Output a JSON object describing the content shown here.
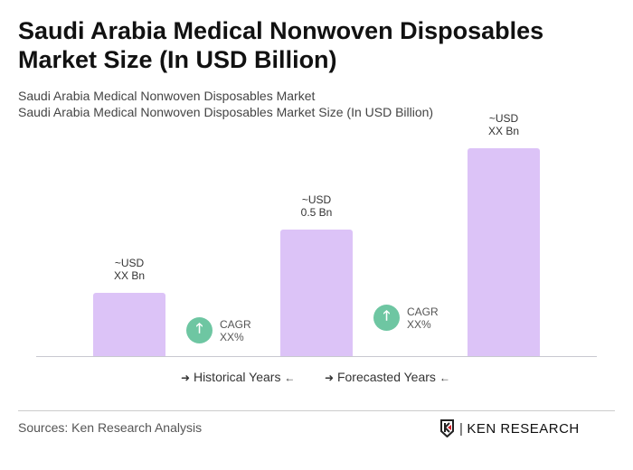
{
  "title": "Saudi Arabia Medical Nonwoven Disposables Market Size (In USD Billion)",
  "subtitle1": "Saudi Arabia Medical Nonwoven Disposables Market",
  "subtitle2": "Saudi Arabia Medical Nonwoven Disposables Market Size (In USD Billion)",
  "chart_data": {
    "type": "bar",
    "categories": [
      "",
      "",
      ""
    ],
    "values": [
      0.25,
      0.5,
      0.82
    ],
    "data_labels": [
      [
        "~USD",
        "XX Bn"
      ],
      [
        "~USD",
        "0.5 Bn"
      ],
      [
        "~USD",
        "XX Bn"
      ]
    ],
    "bar_color": "#dcc3f7",
    "grid": false,
    "cagr": [
      {
        "label": "CAGR",
        "value": "XX%",
        "icon": "arrow-up-icon"
      },
      {
        "label": "CAGR",
        "value": "XX%",
        "icon": "arrow-up-icon"
      }
    ],
    "legend": [
      "Historical Years",
      "Forecasted Years"
    ],
    "cagr_color": "#6ec6a2"
  },
  "footer": {
    "source": "Sources: Ken Research Analysis",
    "logo_text": "KEN RESEARCH"
  }
}
